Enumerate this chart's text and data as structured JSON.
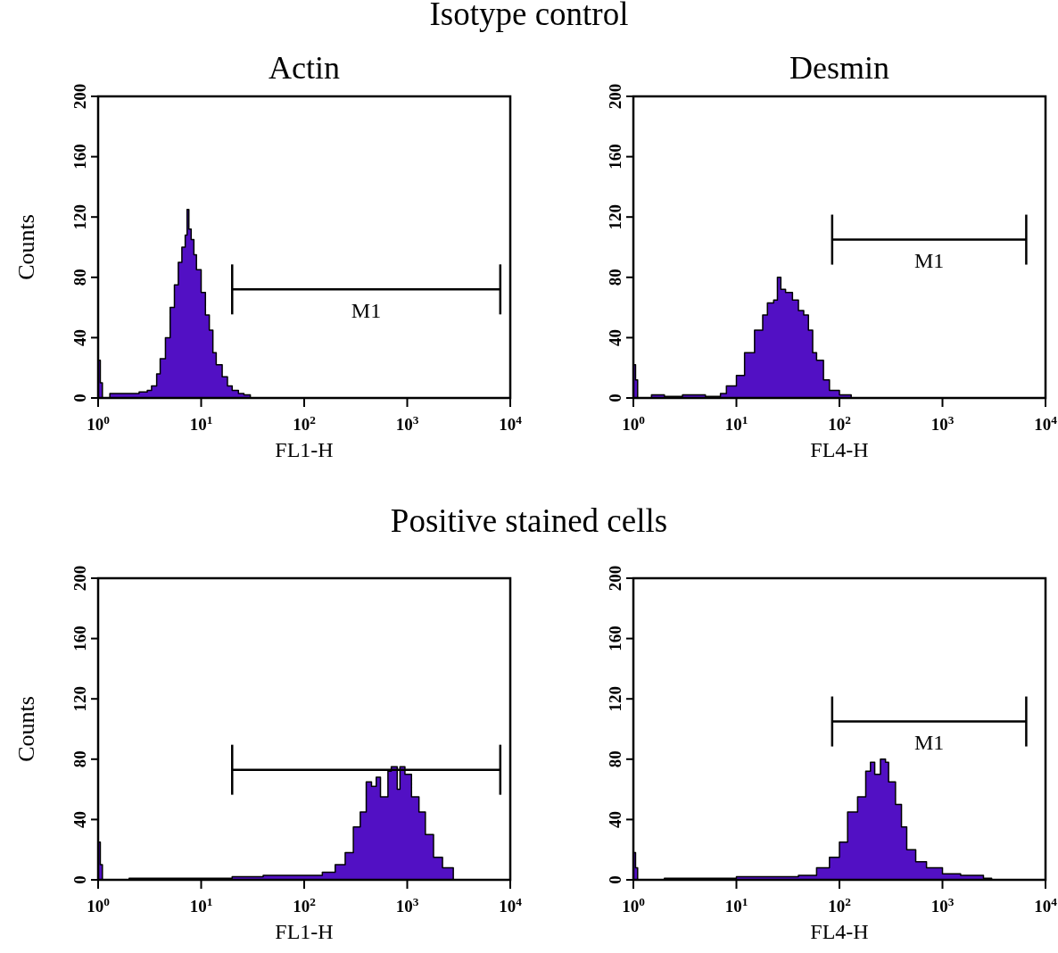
{
  "chart_data": [
    {
      "type": "area",
      "title": "Isotype control",
      "subtitle": "Actin",
      "xlabel": "FL1-H",
      "ylabel": "Counts",
      "log": "x",
      "xlim": [
        1,
        10000
      ],
      "ylim": [
        0,
        200
      ],
      "xticks": [
        {
          "value": 1,
          "label": "10$^{0}$"
        },
        {
          "value": 10,
          "label": "10$^{1}$"
        },
        {
          "value": 100,
          "label": "10$^{2}$"
        },
        {
          "value": 1000,
          "label": "10$^{3}$"
        },
        {
          "value": 10000,
          "label": "10$^{4}$"
        }
      ],
      "yticks": [
        0,
        40,
        80,
        120,
        160,
        200
      ],
      "annotations": [
        "M1"
      ],
      "series": [
        {
          "color": "#5210c4",
          "x": [
            1,
            1.05,
            1.1,
            1.3,
            1.6,
            2,
            2.5,
            3,
            3.3,
            3.7,
            4,
            4.5,
            5,
            5.5,
            6,
            6.5,
            7,
            7.3,
            7.6,
            8,
            8.5,
            9,
            10,
            11,
            12,
            13,
            14,
            16,
            18,
            20,
            23,
            26,
            30,
            40,
            100,
            1000,
            10000
          ],
          "values": [
            25,
            10,
            0,
            3,
            3,
            3,
            4,
            5,
            8,
            16,
            26,
            40,
            60,
            75,
            90,
            100,
            108,
            125,
            112,
            105,
            95,
            85,
            70,
            55,
            45,
            30,
            22,
            14,
            8,
            5,
            3,
            2,
            0,
            0,
            0,
            0,
            0
          ]
        },
        {
          "type": "line",
          "color": "#000000",
          "x": [
            20,
            8000
          ],
          "values": [
            72,
            72
          ]
        }
      ]
    },
    {
      "type": "area",
      "subtitle": "Desmin",
      "xlabel": "FL4-H",
      "log": "x",
      "xlim": [
        1,
        10000
      ],
      "ylim": [
        0,
        200
      ],
      "xticks": [
        {
          "value": 1,
          "label": "10$^{0}$"
        },
        {
          "value": 10,
          "label": "10$^{1}$"
        },
        {
          "value": 100,
          "label": "10$^{2}$"
        },
        {
          "value": 1000,
          "label": "10$^{3}$"
        },
        {
          "value": 10000,
          "label": "10$^{4}$"
        }
      ],
      "yticks": [
        0,
        40,
        80,
        120,
        160,
        200
      ],
      "annotations": [
        "M1"
      ],
      "series": [
        {
          "color": "#5210c4",
          "x": [
            1,
            1.05,
            1.1,
            1.5,
            2,
            3,
            5,
            7,
            8,
            10,
            12,
            15,
            18,
            20,
            23,
            25,
            27,
            30,
            35,
            40,
            45,
            50,
            55,
            60,
            70,
            80,
            100,
            130,
            1000,
            10000
          ],
          "values": [
            22,
            12,
            0,
            2,
            1,
            2,
            1,
            3,
            8,
            15,
            30,
            45,
            55,
            63,
            65,
            80,
            72,
            70,
            65,
            58,
            55,
            45,
            30,
            25,
            12,
            5,
            2,
            0,
            0,
            0
          ]
        },
        {
          "type": "line",
          "color": "#000000",
          "x": [
            85,
            6500
          ],
          "values": [
            105,
            105
          ]
        }
      ]
    },
    {
      "type": "area",
      "title": "Positive stained cells",
      "xlabel": "FL1-H",
      "ylabel": "Counts",
      "log": "x",
      "xlim": [
        1,
        10000
      ],
      "ylim": [
        0,
        200
      ],
      "xticks": [
        {
          "value": 1,
          "label": "10$^{0}$"
        },
        {
          "value": 10,
          "label": "10$^{1}$"
        },
        {
          "value": 100,
          "label": "10$^{2}$"
        },
        {
          "value": 1000,
          "label": "10$^{3}$"
        },
        {
          "value": 10000,
          "label": "10$^{4}$"
        }
      ],
      "yticks": [
        0,
        40,
        80,
        120,
        160,
        200
      ],
      "series": [
        {
          "color": "#5210c4",
          "x": [
            1,
            1.05,
            1.1,
            2,
            5,
            10,
            20,
            40,
            80,
            150,
            200,
            250,
            300,
            350,
            400,
            450,
            500,
            550,
            650,
            700,
            800,
            850,
            950,
            1100,
            1300,
            1500,
            1800,
            2200,
            2800,
            10000
          ],
          "values": [
            25,
            10,
            0,
            1,
            1,
            1,
            2,
            3,
            3,
            5,
            10,
            18,
            35,
            45,
            65,
            62,
            68,
            55,
            72,
            75,
            60,
            75,
            70,
            55,
            45,
            30,
            15,
            8,
            0,
            0
          ]
        },
        {
          "type": "line",
          "color": "#000000",
          "x": [
            20,
            8000
          ],
          "values": [
            73,
            73
          ]
        }
      ]
    },
    {
      "type": "area",
      "xlabel": "FL4-H",
      "log": "x",
      "xlim": [
        1,
        10000
      ],
      "ylim": [
        0,
        200
      ],
      "xticks": [
        {
          "value": 1,
          "label": "10$^{0}$"
        },
        {
          "value": 10,
          "label": "10$^{1}$"
        },
        {
          "value": 100,
          "label": "10$^{2}$"
        },
        {
          "value": 1000,
          "label": "10$^{3}$"
        },
        {
          "value": 10000,
          "label": "10$^{4}$"
        }
      ],
      "yticks": [
        0,
        40,
        80,
        120,
        160,
        200
      ],
      "annotations": [
        "M1"
      ],
      "series": [
        {
          "color": "#5210c4",
          "x": [
            1,
            1.05,
            1.1,
            2,
            5,
            10,
            20,
            40,
            60,
            80,
            100,
            120,
            150,
            180,
            200,
            220,
            250,
            280,
            300,
            350,
            400,
            450,
            550,
            700,
            1000,
            1500,
            2500,
            3000,
            10000
          ],
          "values": [
            18,
            8,
            0,
            1,
            1,
            2,
            2,
            3,
            8,
            15,
            25,
            45,
            55,
            72,
            78,
            70,
            80,
            78,
            65,
            50,
            35,
            20,
            12,
            8,
            4,
            3,
            1,
            0,
            0
          ]
        },
        {
          "type": "line",
          "color": "#000000",
          "x": [
            85,
            6500
          ],
          "values": [
            105,
            105
          ]
        }
      ]
    }
  ]
}
